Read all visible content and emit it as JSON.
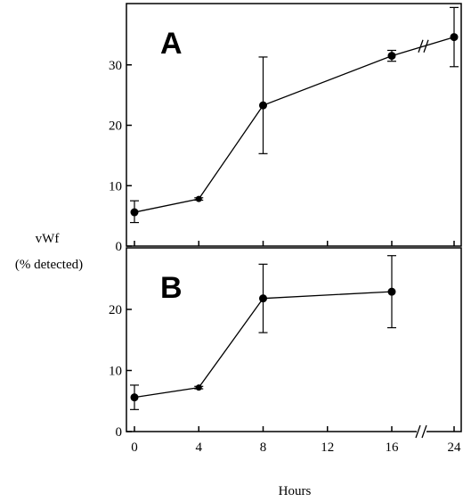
{
  "chart_data": [
    {
      "type": "line",
      "panel_label": "A",
      "ylim": [
        0,
        40
      ],
      "yticks": [
        0,
        10,
        20,
        30
      ],
      "xticks": [],
      "series": [
        {
          "points": [
            {
              "x": 0,
              "y": 5.6,
              "lo": 3.9,
              "hi": 7.5
            },
            {
              "x": 4,
              "y": 7.8,
              "lo": 7.6,
              "hi": 8.0
            },
            {
              "x": 8,
              "y": 23.3,
              "lo": 15.3,
              "hi": 31.3
            },
            {
              "x": 16,
              "y": 31.5,
              "lo": 30.6,
              "hi": 32.4
            },
            {
              "x": 24,
              "y": 34.6,
              "lo": 29.7,
              "hi": 39.5
            }
          ]
        }
      ],
      "axis_break": true
    },
    {
      "type": "line",
      "panel_label": "B",
      "ylim": [
        0,
        30
      ],
      "yticks": [
        0,
        10,
        20
      ],
      "xticks": [
        0,
        4,
        8,
        12,
        16,
        24
      ],
      "series": [
        {
          "points": [
            {
              "x": 0,
              "y": 5.6,
              "lo": 3.6,
              "hi": 7.6
            },
            {
              "x": 4,
              "y": 7.2,
              "lo": 7.0,
              "hi": 7.4
            },
            {
              "x": 8,
              "y": 21.8,
              "lo": 16.2,
              "hi": 27.4
            },
            {
              "x": 16,
              "y": 22.9,
              "lo": 17.0,
              "hi": 28.8
            }
          ]
        }
      ],
      "axis_break": true
    }
  ],
  "shared": {
    "ylabel_line1": "vWf",
    "ylabel_line2": "(% detected)",
    "xlabel": "Hours",
    "line_color": "#000000"
  }
}
